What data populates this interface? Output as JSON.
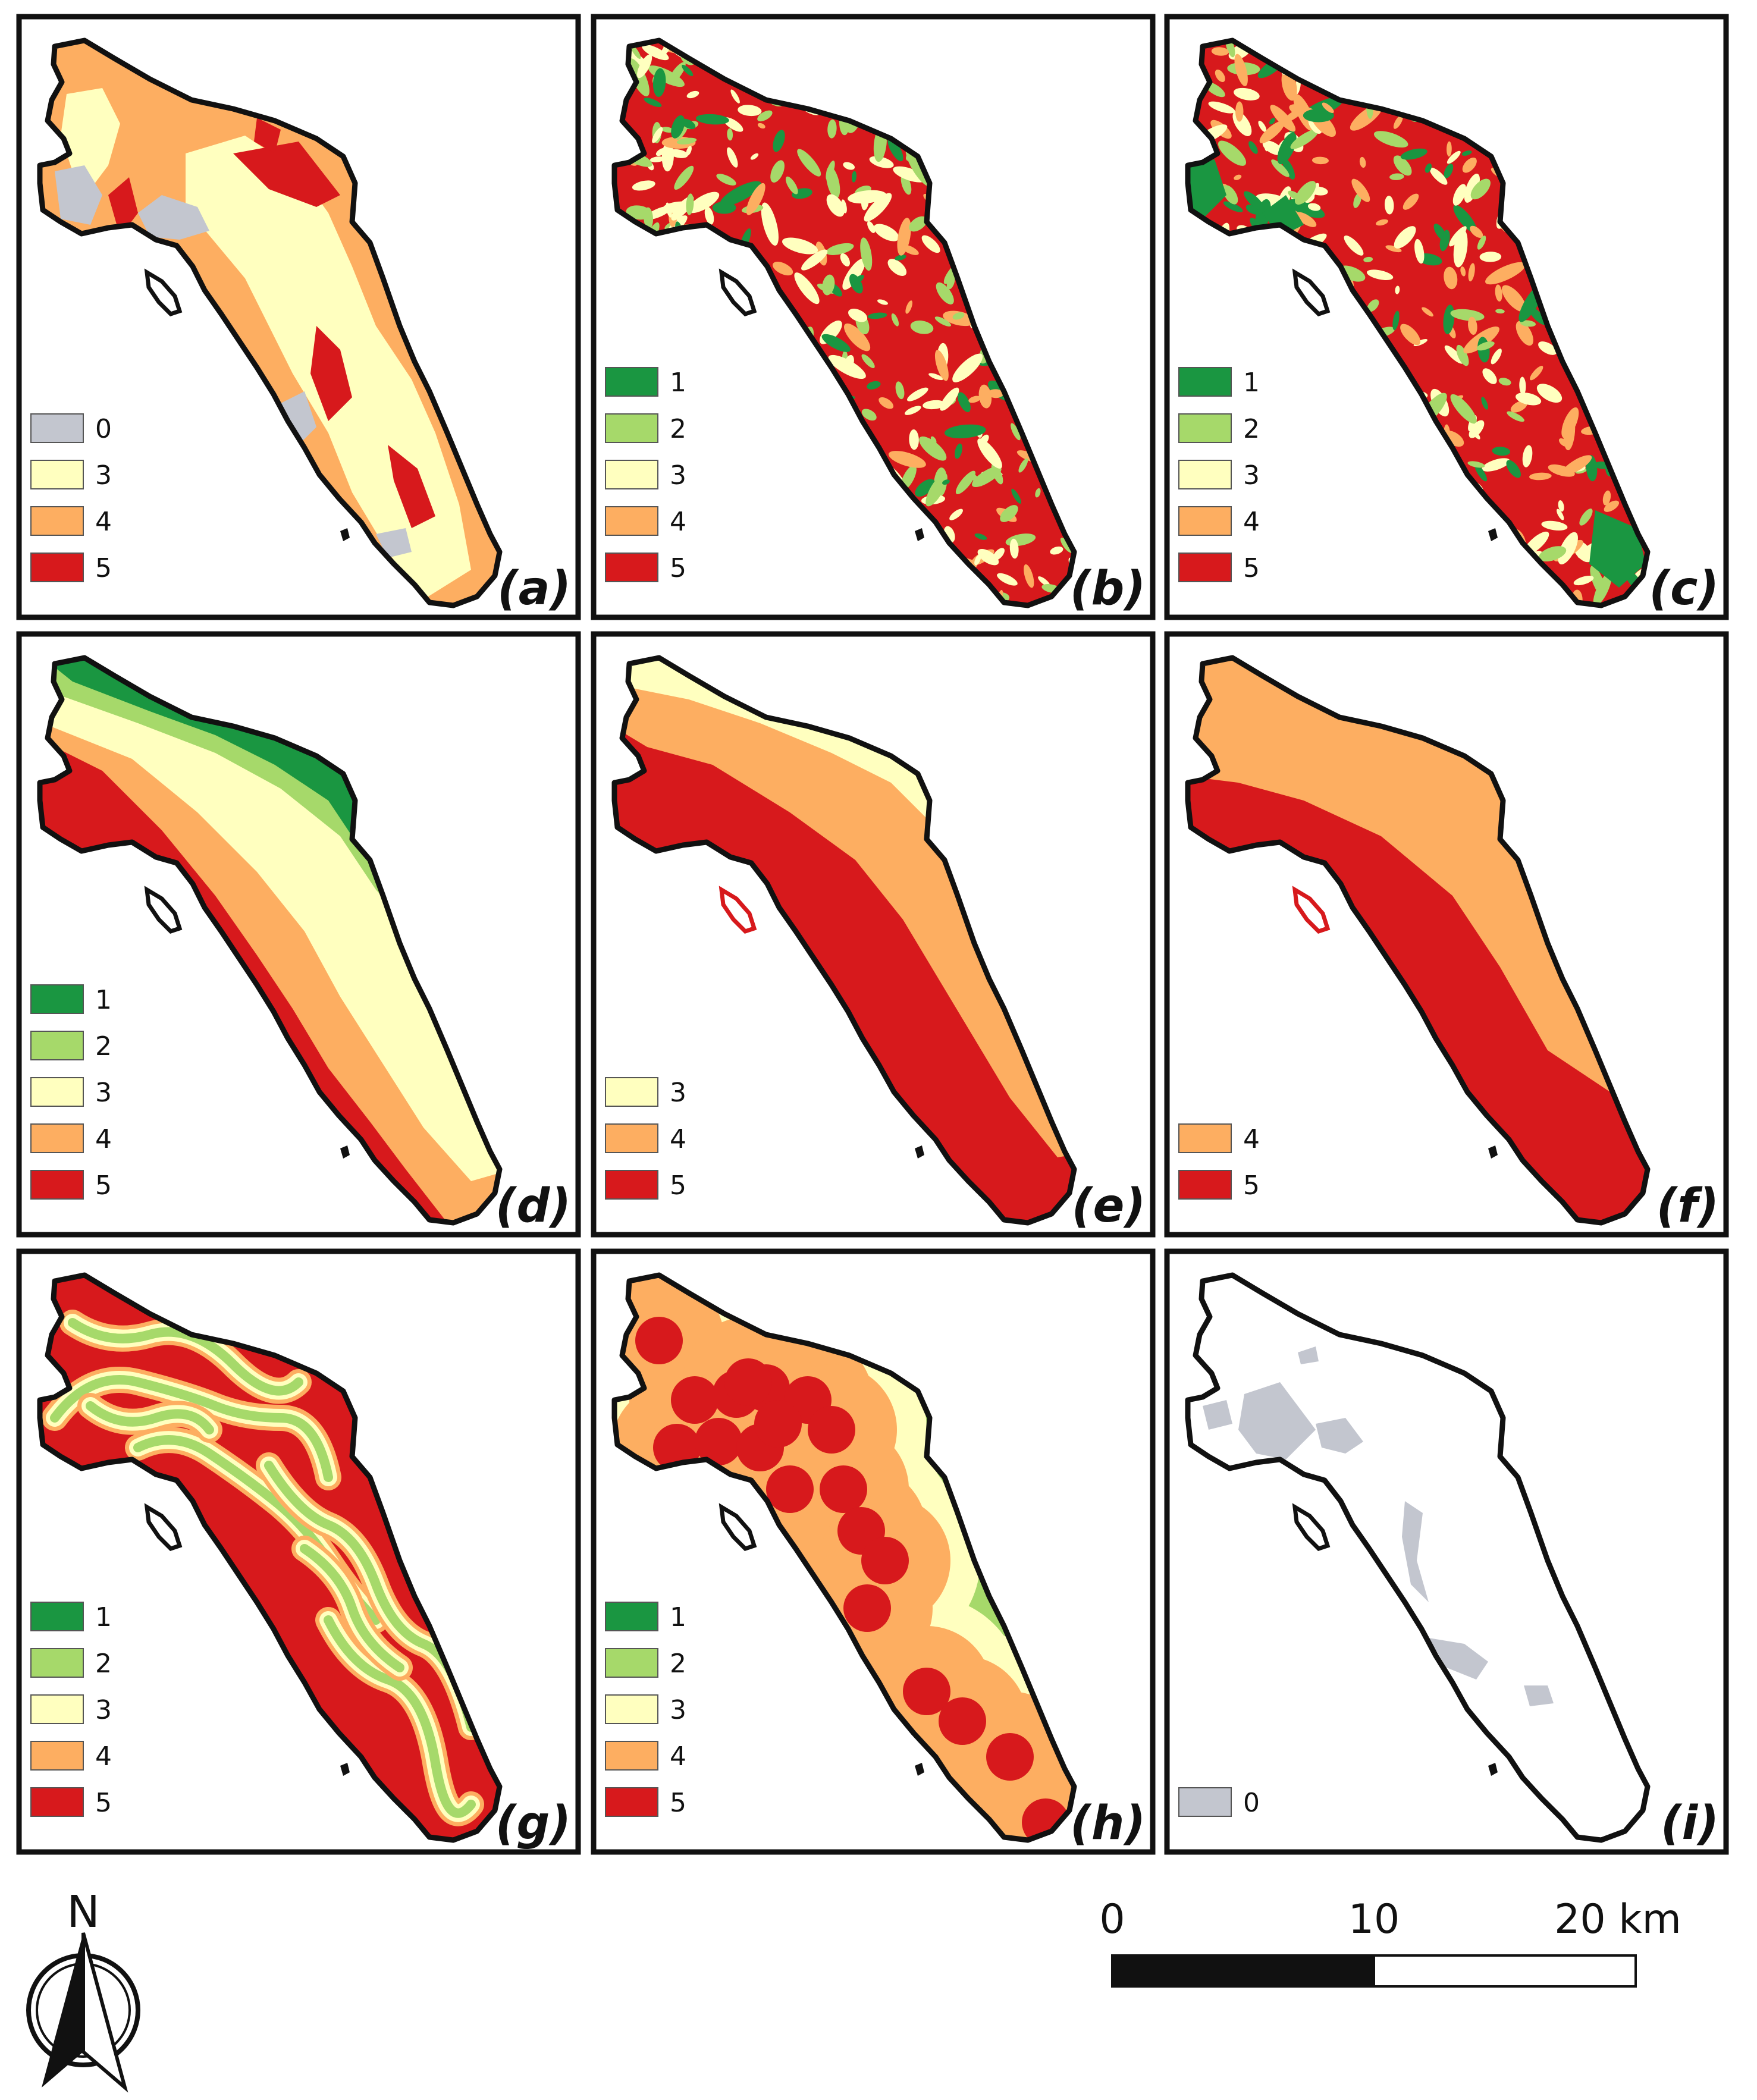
{
  "classes": {
    "0": "#c3c6cf",
    "1": "#1a9641",
    "2": "#a6d96a",
    "3": "#ffffbf",
    "4": "#fdae61",
    "5": "#d7191c"
  },
  "panels": [
    {
      "label": "(a)",
      "legend": [
        "0",
        "3",
        "4",
        "5"
      ]
    },
    {
      "label": "(b)",
      "legend": [
        "1",
        "2",
        "3",
        "4",
        "5"
      ]
    },
    {
      "label": "(c)",
      "legend": [
        "1",
        "2",
        "3",
        "4",
        "5"
      ]
    },
    {
      "label": "(d)",
      "legend": [
        "1",
        "2",
        "3",
        "4",
        "5"
      ]
    },
    {
      "label": "(e)",
      "legend": [
        "3",
        "4",
        "5"
      ]
    },
    {
      "label": "(f)",
      "legend": [
        "4",
        "5"
      ]
    },
    {
      "label": "(g)",
      "legend": [
        "1",
        "2",
        "3",
        "4",
        "5"
      ]
    },
    {
      "label": "(h)",
      "legend": [
        "1",
        "2",
        "3",
        "4",
        "5"
      ]
    },
    {
      "label": "(i)",
      "legend": [
        "0"
      ]
    }
  ],
  "north_arrow": {
    "label": "N"
  },
  "scale_bar": {
    "ticks": [
      "0",
      "10",
      "20 km"
    ]
  }
}
